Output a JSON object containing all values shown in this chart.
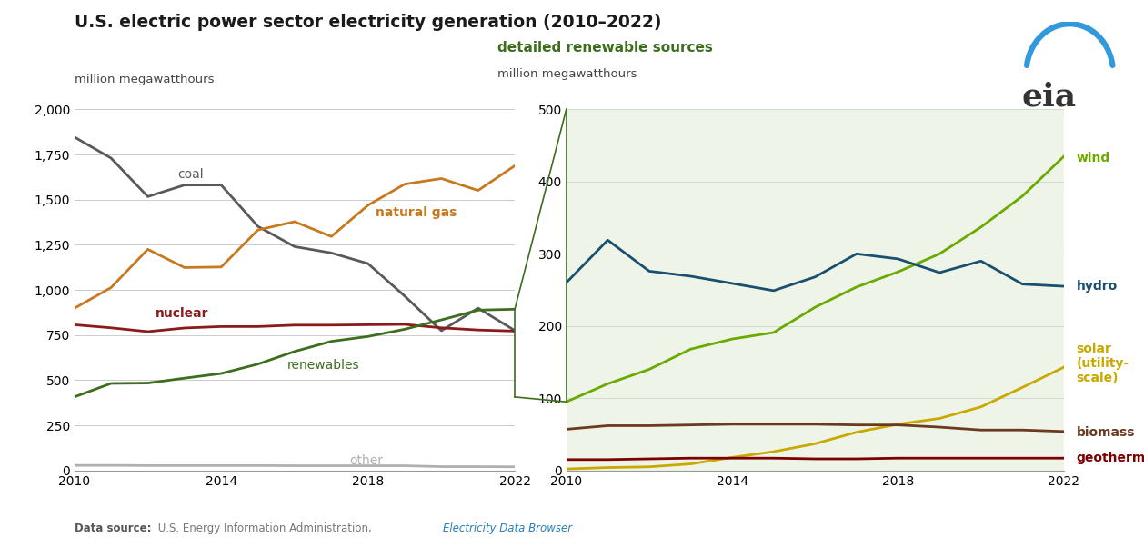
{
  "title": "U.S. electric power sector electricity generation (2010–2022)",
  "ylabel_left": "million megawatthours",
  "ylabel_right": "million megawatthours",
  "subtitle_right": "detailed renewable sources",
  "data_source_bold": "Data source:",
  "data_source_normal": " U.S. Energy Information Administration, ",
  "data_source_link": "Electricity Data Browser",
  "years": [
    2010,
    2011,
    2012,
    2013,
    2014,
    2015,
    2016,
    2017,
    2018,
    2019,
    2020,
    2021,
    2022
  ],
  "coal": [
    1847,
    1730,
    1517,
    1581,
    1581,
    1352,
    1240,
    1205,
    1146,
    966,
    774,
    899,
    775
  ],
  "natural_gas": [
    898,
    1013,
    1225,
    1124,
    1127,
    1332,
    1378,
    1296,
    1469,
    1586,
    1617,
    1551,
    1688
  ],
  "nuclear": [
    807,
    790,
    769,
    789,
    797,
    797,
    805,
    805,
    807,
    809,
    790,
    778,
    772
  ],
  "renewables": [
    407,
    482,
    484,
    511,
    537,
    589,
    659,
    715,
    742,
    782,
    834,
    888,
    893
  ],
  "other": [
    28,
    28,
    27,
    27,
    27,
    27,
    26,
    26,
    26,
    26,
    21,
    21,
    20
  ],
  "wind": [
    95,
    120,
    140,
    168,
    182,
    191,
    226,
    254,
    275,
    300,
    337,
    380,
    435
  ],
  "hydro": [
    260,
    319,
    276,
    269,
    259,
    249,
    268,
    300,
    293,
    274,
    290,
    258,
    255
  ],
  "solar": [
    2,
    4,
    5,
    9,
    18,
    26,
    37,
    53,
    64,
    72,
    88,
    115,
    143
  ],
  "biomass": [
    57,
    62,
    62,
    63,
    64,
    64,
    64,
    63,
    63,
    60,
    56,
    56,
    54
  ],
  "geothermal": [
    15,
    15,
    16,
    17,
    17,
    17,
    16,
    16,
    17,
    17,
    17,
    17,
    17
  ],
  "colors": {
    "coal": "#595959",
    "natural_gas": "#c87820",
    "nuclear": "#8b1a1a",
    "renewables": "#3d6e1e",
    "other": "#b0b0b0",
    "wind": "#6aaa00",
    "hydro": "#1a4f70",
    "solar": "#c9a800",
    "biomass": "#6b3a1f",
    "geothermal": "#7b0000"
  },
  "left_ylim": [
    0,
    2000
  ],
  "left_yticks": [
    0,
    250,
    500,
    750,
    1000,
    1250,
    1500,
    1750,
    2000
  ],
  "right_ylim": [
    0,
    500
  ],
  "right_yticks": [
    0,
    100,
    200,
    300,
    400,
    500
  ],
  "bg_right": "#eef5e8",
  "fig_bg": "#ffffff",
  "grid_color_left": "#cccccc",
  "grid_color_right": "#d0ddc8",
  "line_width": 2.0
}
